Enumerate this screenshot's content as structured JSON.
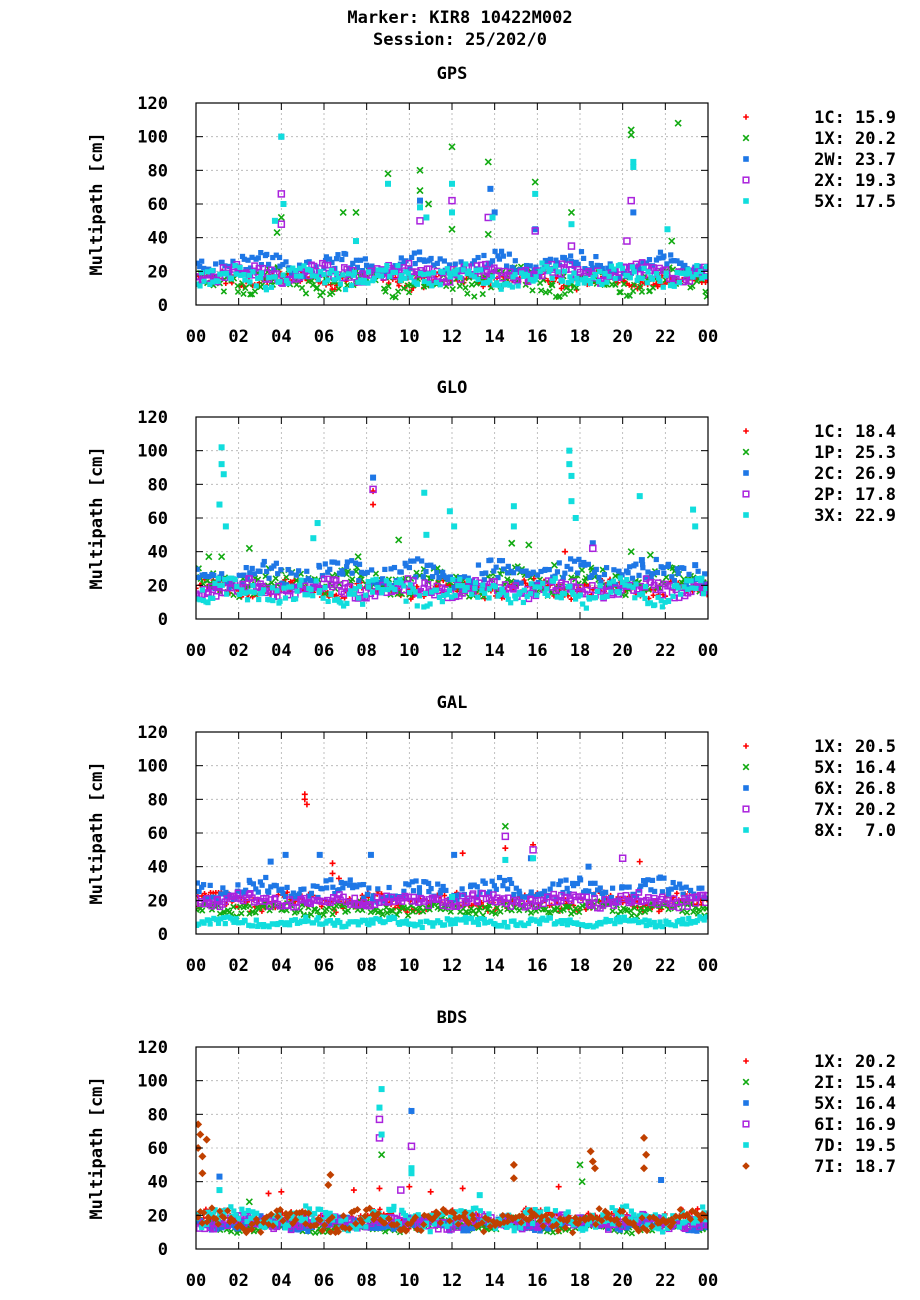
{
  "header": {
    "marker": "Marker: KIR8 10422M002",
    "session": "Session: 25/202/0"
  },
  "colors": {
    "1C": "#ff0000",
    "1X": "#ff0000",
    "1P": "#11aa11",
    "2I": "#11aa11",
    "2W": "#1e77e6",
    "2C": "#1e77e6",
    "6X": "#1e77e6",
    "5X": "#1e77e6",
    "2X": "#aa22dd",
    "2P": "#aa22dd",
    "7X": "#aa22dd",
    "6I": "#aa22dd",
    "5X_gps": "#11dddd",
    "3X": "#11dddd",
    "8X": "#11dddd",
    "7D": "#11dddd",
    "7I": "#c04000"
  },
  "chart_data": [
    {
      "type": "scatter",
      "title": "GPS",
      "ylabel": "Multipath [cm]",
      "ylim": [
        0,
        120
      ],
      "xlim": [
        0,
        24
      ],
      "x_ticks": [
        "00",
        "02",
        "04",
        "06",
        "08",
        "10",
        "12",
        "14",
        "16",
        "18",
        "20",
        "22",
        "00"
      ],
      "y_ticks": [
        "0",
        "20",
        "40",
        "60",
        "80",
        "100",
        "120"
      ],
      "grid": true,
      "legend_position": "right",
      "series": [
        {
          "name": "1C",
          "value": "15.9",
          "marker": "plus",
          "color": "#ff0000",
          "baseline": 15,
          "spread": 4
        },
        {
          "name": "1X",
          "value": "20.2",
          "marker": "cross",
          "color": "#11aa11",
          "baseline": 14,
          "spread": 6,
          "outliers": [
            [
              3.8,
              43
            ],
            [
              4.0,
              52
            ],
            [
              6.9,
              55
            ],
            [
              7.5,
              55
            ],
            [
              9.0,
              78
            ],
            [
              10.5,
              80
            ],
            [
              10.5,
              68
            ],
            [
              10.9,
              60
            ],
            [
              12.0,
              94
            ],
            [
              12.0,
              45
            ],
            [
              13.7,
              85
            ],
            [
              13.7,
              42
            ],
            [
              15.9,
              73
            ],
            [
              17.6,
              55
            ],
            [
              20.4,
              104
            ],
            [
              20.4,
              101
            ],
            [
              22.6,
              108
            ],
            [
              22.3,
              38
            ]
          ]
        },
        {
          "name": "2W",
          "value": "23.7",
          "marker": "square",
          "color": "#1e77e6",
          "baseline": 24,
          "spread": 5,
          "outliers": [
            [
              4.0,
              100
            ],
            [
              10.5,
              62
            ],
            [
              13.8,
              69
            ],
            [
              14.0,
              55
            ],
            [
              20.5,
              55
            ],
            [
              15.9,
              45
            ]
          ]
        },
        {
          "name": "2X",
          "value": "19.3",
          "marker": "osquare",
          "color": "#aa22dd",
          "baseline": 19,
          "spread": 4,
          "outliers": [
            [
              4.0,
              66
            ],
            [
              4.0,
              48
            ],
            [
              10.5,
              50
            ],
            [
              12.0,
              62
            ],
            [
              13.7,
              52
            ],
            [
              20.4,
              62
            ],
            [
              20.2,
              38
            ],
            [
              17.6,
              35
            ],
            [
              15.9,
              44
            ]
          ]
        },
        {
          "name": "5X",
          "value": "17.5",
          "marker": "square",
          "color": "#11dddd",
          "baseline": 17,
          "spread": 5,
          "outliers": [
            [
              3.7,
              50
            ],
            [
              4.0,
              100
            ],
            [
              4.1,
              60
            ],
            [
              9.0,
              72
            ],
            [
              10.5,
              58
            ],
            [
              10.8,
              52
            ],
            [
              12.0,
              72
            ],
            [
              12.0,
              55
            ],
            [
              13.9,
              52
            ],
            [
              15.9,
              66
            ],
            [
              17.6,
              48
            ],
            [
              20.5,
              85
            ],
            [
              20.5,
              82
            ],
            [
              22.1,
              45
            ],
            [
              7.5,
              38
            ]
          ]
        }
      ]
    },
    {
      "type": "scatter",
      "title": "GLO",
      "ylabel": "Multipath [cm]",
      "ylim": [
        0,
        120
      ],
      "xlim": [
        0,
        24
      ],
      "x_ticks": [
        "00",
        "02",
        "04",
        "06",
        "08",
        "10",
        "12",
        "14",
        "16",
        "18",
        "20",
        "22",
        "00"
      ],
      "y_ticks": [
        "0",
        "20",
        "40",
        "60",
        "80",
        "100",
        "120"
      ],
      "grid": true,
      "legend_position": "right",
      "series": [
        {
          "name": "1C",
          "value": "18.4",
          "marker": "plus",
          "color": "#ff0000",
          "baseline": 18,
          "spread": 4,
          "outliers": [
            [
              8.3,
              68
            ],
            [
              8.3,
              76
            ],
            [
              17.3,
              40
            ]
          ]
        },
        {
          "name": "1P",
          "value": "25.3",
          "marker": "cross",
          "color": "#11aa11",
          "baseline": 22,
          "spread": 6,
          "outliers": [
            [
              0.6,
              37
            ],
            [
              1.2,
              37
            ],
            [
              2.5,
              42
            ],
            [
              7.6,
              37
            ],
            [
              9.5,
              47
            ],
            [
              14.8,
              45
            ],
            [
              15.6,
              44
            ],
            [
              16.8,
              32
            ],
            [
              20.4,
              40
            ],
            [
              21.3,
              38
            ],
            [
              22.5,
              30
            ]
          ]
        },
        {
          "name": "2C",
          "value": "26.9",
          "marker": "square",
          "color": "#1e77e6",
          "baseline": 27,
          "spread": 6,
          "outliers": [
            [
              8.3,
              84
            ],
            [
              18.6,
              45
            ],
            [
              20.9,
              35
            ],
            [
              23.4,
              32
            ]
          ]
        },
        {
          "name": "2P",
          "value": "17.8",
          "marker": "osquare",
          "color": "#aa22dd",
          "baseline": 18,
          "spread": 4,
          "outliers": [
            [
              8.3,
              77
            ],
            [
              18.6,
              42
            ]
          ]
        },
        {
          "name": "3X",
          "value": "22.9",
          "marker": "square",
          "color": "#11dddd",
          "baseline": 16,
          "spread": 6,
          "outliers": [
            [
              1.2,
              102
            ],
            [
              1.2,
              92
            ],
            [
              1.3,
              86
            ],
            [
              1.1,
              68
            ],
            [
              1.4,
              55
            ],
            [
              5.7,
              57
            ],
            [
              5.5,
              48
            ],
            [
              10.7,
              75
            ],
            [
              10.8,
              50
            ],
            [
              11.9,
              64
            ],
            [
              12.1,
              55
            ],
            [
              14.9,
              67
            ],
            [
              14.9,
              55
            ],
            [
              17.5,
              100
            ],
            [
              17.5,
              92
            ],
            [
              17.6,
              85
            ],
            [
              17.6,
              70
            ],
            [
              17.8,
              60
            ],
            [
              20.8,
              73
            ],
            [
              23.3,
              65
            ],
            [
              23.4,
              55
            ]
          ]
        }
      ]
    },
    {
      "type": "scatter",
      "title": "GAL",
      "ylabel": "Multipath [cm]",
      "ylim": [
        0,
        120
      ],
      "xlim": [
        0,
        24
      ],
      "x_ticks": [
        "00",
        "02",
        "04",
        "06",
        "08",
        "10",
        "12",
        "14",
        "16",
        "18",
        "20",
        "22",
        "00"
      ],
      "y_ticks": [
        "0",
        "20",
        "40",
        "60",
        "80",
        "100",
        "120"
      ],
      "grid": true,
      "legend_position": "right",
      "series": [
        {
          "name": "1X",
          "value": "20.5",
          "marker": "plus",
          "color": "#ff0000",
          "baseline": 19,
          "spread": 4,
          "outliers": [
            [
              5.1,
              83
            ],
            [
              5.1,
              80
            ],
            [
              5.2,
              77
            ],
            [
              6.4,
              42
            ],
            [
              6.4,
              36
            ],
            [
              6.7,
              33
            ],
            [
              12.5,
              48
            ],
            [
              14.5,
              51
            ],
            [
              15.8,
              53
            ],
            [
              20.8,
              43
            ]
          ]
        },
        {
          "name": "5X",
          "value": "16.4",
          "marker": "cross",
          "color": "#11aa11",
          "baseline": 15,
          "spread": 3,
          "outliers": [
            [
              14.5,
              64
            ]
          ]
        },
        {
          "name": "6X",
          "value": "26.8",
          "marker": "square",
          "color": "#1e77e6",
          "baseline": 26,
          "spread": 5,
          "outliers": [
            [
              3.5,
              43
            ],
            [
              4.2,
              47
            ],
            [
              5.8,
              47
            ],
            [
              8.2,
              47
            ],
            [
              12.1,
              47
            ],
            [
              15.7,
              45
            ],
            [
              18.4,
              40
            ]
          ]
        },
        {
          "name": "7X",
          "value": "20.2",
          "marker": "osquare",
          "color": "#aa22dd",
          "baseline": 20,
          "spread": 3,
          "outliers": [
            [
              14.5,
              58
            ],
            [
              15.8,
              50
            ],
            [
              20.0,
              45
            ]
          ]
        },
        {
          "name": "8X",
          "value": "7.0",
          "marker": "square",
          "color": "#11dddd",
          "baseline": 7,
          "spread": 2,
          "outliers": [
            [
              14.5,
              44
            ],
            [
              15.8,
              45
            ],
            [
              12.0,
              22
            ]
          ]
        }
      ]
    },
    {
      "type": "scatter",
      "title": "BDS",
      "ylabel": "Multipath [cm]",
      "ylim": [
        0,
        120
      ],
      "xlim": [
        0,
        24
      ],
      "x_ticks": [
        "00",
        "02",
        "04",
        "06",
        "08",
        "10",
        "12",
        "14",
        "16",
        "18",
        "20",
        "22",
        "00"
      ],
      "y_ticks": [
        "0",
        "20",
        "40",
        "60",
        "80",
        "100",
        "120"
      ],
      "grid": true,
      "legend_position": "right",
      "series": [
        {
          "name": "1X",
          "value": "20.2",
          "marker": "plus",
          "color": "#ff0000",
          "baseline": 18,
          "spread": 4,
          "outliers": [
            [
              3.4,
              33
            ],
            [
              4.0,
              34
            ],
            [
              7.4,
              35
            ],
            [
              8.6,
              36
            ],
            [
              10.0,
              37
            ],
            [
              11.0,
              34
            ],
            [
              12.5,
              36
            ],
            [
              17.0,
              37
            ]
          ]
        },
        {
          "name": "2I",
          "value": "15.4",
          "marker": "cross",
          "color": "#11aa11",
          "baseline": 14,
          "spread": 3,
          "outliers": [
            [
              8.7,
              56
            ],
            [
              18.0,
              50
            ],
            [
              18.1,
              40
            ],
            [
              2.5,
              28
            ]
          ]
        },
        {
          "name": "5X",
          "value": "16.4",
          "marker": "square",
          "color": "#1e77e6",
          "baseline": 15,
          "spread": 3,
          "outliers": [
            [
              10.1,
              82
            ],
            [
              1.1,
              43
            ],
            [
              21.8,
              41
            ]
          ]
        },
        {
          "name": "6I",
          "value": "16.9",
          "marker": "osquare",
          "color": "#aa22dd",
          "baseline": 16,
          "spread": 3,
          "outliers": [
            [
              8.6,
              77
            ],
            [
              8.6,
              66
            ],
            [
              10.1,
              61
            ],
            [
              9.6,
              35
            ]
          ]
        },
        {
          "name": "7D",
          "value": "19.5",
          "marker": "square",
          "color": "#11dddd",
          "baseline": 18,
          "spread": 5,
          "outliers": [
            [
              8.7,
              95
            ],
            [
              8.6,
              84
            ],
            [
              8.7,
              68
            ],
            [
              10.1,
              48
            ],
            [
              10.1,
              45
            ],
            [
              13.3,
              32
            ],
            [
              1.1,
              35
            ]
          ]
        },
        {
          "name": "7I",
          "value": "18.7",
          "marker": "diamond",
          "color": "#c04000",
          "baseline": 17,
          "spread": 5,
          "outliers": [
            [
              0.1,
              74
            ],
            [
              0.2,
              68
            ],
            [
              0.1,
              60
            ],
            [
              0.3,
              55
            ],
            [
              0.5,
              65
            ],
            [
              0.3,
              45
            ],
            [
              6.3,
              44
            ],
            [
              6.2,
              38
            ],
            [
              14.9,
              50
            ],
            [
              14.9,
              42
            ],
            [
              18.5,
              58
            ],
            [
              18.6,
              52
            ],
            [
              18.7,
              48
            ],
            [
              21.0,
              66
            ],
            [
              21.1,
              56
            ],
            [
              21.0,
              48
            ]
          ]
        }
      ]
    }
  ]
}
